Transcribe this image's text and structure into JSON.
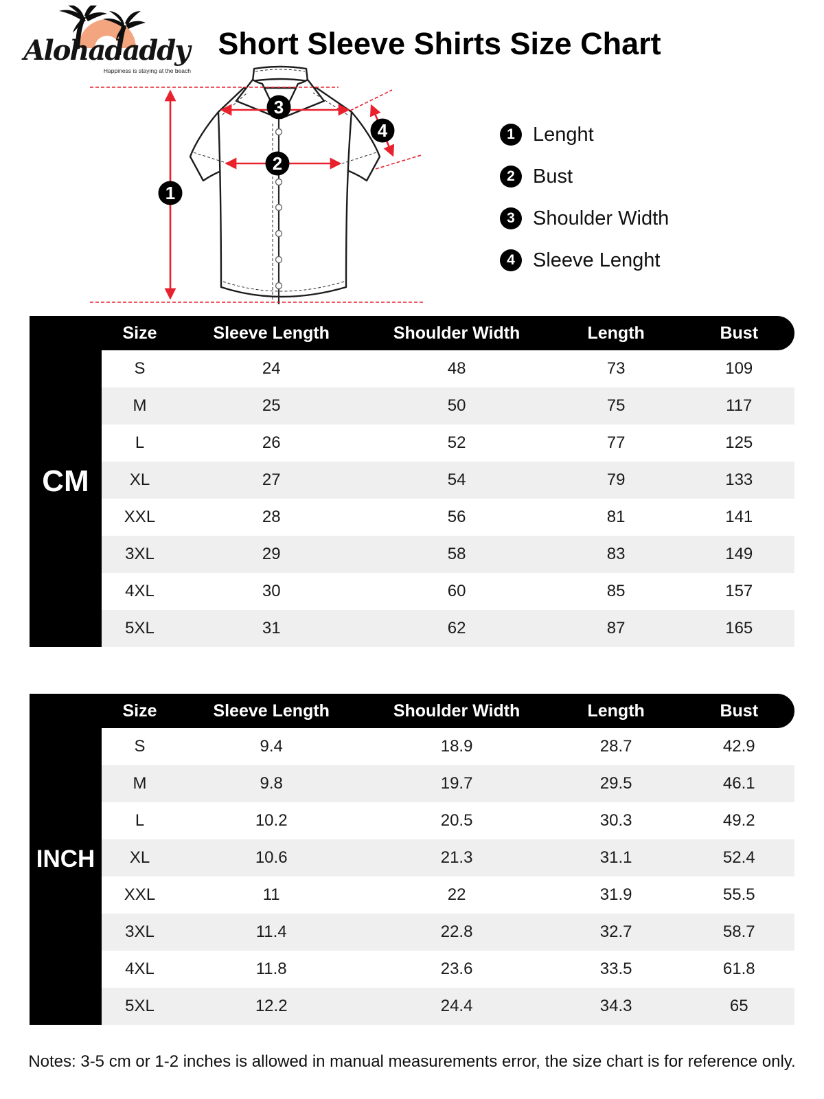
{
  "brand": {
    "name": "Alohadaddy",
    "tagline": "Happiness is staying at the beach"
  },
  "title": "Short Sleeve Shirts Size Chart",
  "diagram": {
    "badges": [
      "1",
      "2",
      "3",
      "4"
    ]
  },
  "legend": {
    "items": [
      {
        "num": "1",
        "label": "Lenght"
      },
      {
        "num": "2",
        "label": "Bust"
      },
      {
        "num": "3",
        "label": "Shoulder Width"
      },
      {
        "num": "4",
        "label": "Sleeve Lenght"
      }
    ]
  },
  "cm_table": {
    "unit_label": "CM",
    "columns": [
      "Size",
      "Sleeve Length",
      "Shoulder Width",
      "Length",
      "Bust"
    ],
    "rows": [
      [
        "S",
        "24",
        "48",
        "73",
        "109"
      ],
      [
        "M",
        "25",
        "50",
        "75",
        "117"
      ],
      [
        "L",
        "26",
        "52",
        "77",
        "125"
      ],
      [
        "XL",
        "27",
        "54",
        "79",
        "133"
      ],
      [
        "XXL",
        "28",
        "56",
        "81",
        "141"
      ],
      [
        "3XL",
        "29",
        "58",
        "83",
        "149"
      ],
      [
        "4XL",
        "30",
        "60",
        "85",
        "157"
      ],
      [
        "5XL",
        "31",
        "62",
        "87",
        "165"
      ]
    ]
  },
  "inch_table": {
    "unit_label": "INCH",
    "columns": [
      "Size",
      "Sleeve Length",
      "Shoulder Width",
      "Length",
      "Bust"
    ],
    "rows": [
      [
        "S",
        "9.4",
        "18.9",
        "28.7",
        "42.9"
      ],
      [
        "M",
        "9.8",
        "19.7",
        "29.5",
        "46.1"
      ],
      [
        "L",
        "10.2",
        "20.5",
        "30.3",
        "49.2"
      ],
      [
        "XL",
        "10.6",
        "21.3",
        "31.1",
        "52.4"
      ],
      [
        "XXL",
        "11",
        "22",
        "31.9",
        "55.5"
      ],
      [
        "3XL",
        "11.4",
        "22.8",
        "32.7",
        "58.7"
      ],
      [
        "4XL",
        "11.8",
        "23.6",
        "33.5",
        "61.8"
      ],
      [
        "5XL",
        "12.2",
        "24.4",
        "34.3",
        "65"
      ]
    ]
  },
  "notes": "Notes: 3-5 cm or 1-2 inches is allowed in manual measurements error, the size chart is for reference only.",
  "colors": {
    "accent_red": "#e8212d",
    "sun_orange": "#f2a57e",
    "row_alt_gray": "#efefef",
    "table_black": "#000000"
  }
}
